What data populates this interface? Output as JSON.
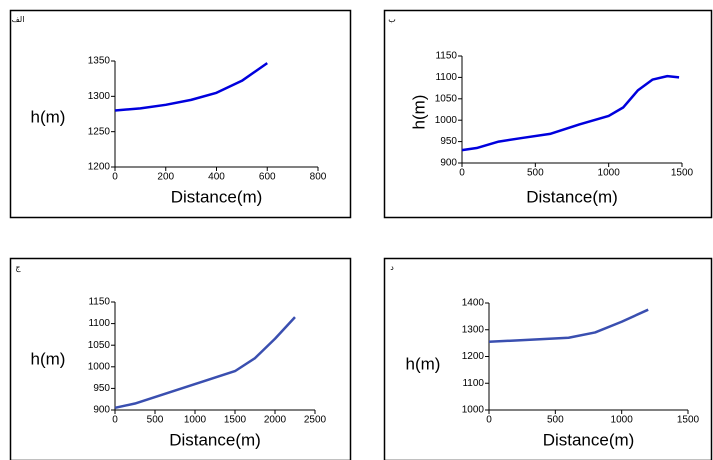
{
  "chart_data": [
    {
      "type": "line",
      "panel_label": "الف",
      "x_label": "Distance(m)",
      "y_label": "h(m)",
      "x": [
        0,
        100,
        200,
        300,
        400,
        500,
        600
      ],
      "series": [
        {
          "color": "#0000dd",
          "values": [
            1280,
            1283,
            1288,
            1295,
            1305,
            1322,
            1347
          ]
        }
      ],
      "xlim": [
        0,
        800
      ],
      "xticks": [
        0,
        200,
        400,
        600,
        800
      ],
      "ylim": [
        1200,
        1350
      ],
      "yticks": [
        1200,
        1250,
        1300,
        1350
      ]
    },
    {
      "type": "line",
      "panel_label": "ب",
      "x_label": "Distance(m)",
      "y_label": "h(m)",
      "x": [
        0,
        100,
        250,
        400,
        600,
        800,
        1000,
        1100,
        1200,
        1300,
        1400,
        1480
      ],
      "series": [
        {
          "color": "#0000dd",
          "values": [
            930,
            935,
            950,
            958,
            968,
            990,
            1010,
            1030,
            1070,
            1095,
            1103,
            1100
          ]
        }
      ],
      "xlim": [
        0,
        1500
      ],
      "xticks": [
        0,
        500,
        1000,
        1500
      ],
      "ylim": [
        900,
        1150
      ],
      "yticks": [
        900,
        950,
        1000,
        1050,
        1100,
        1150
      ]
    },
    {
      "type": "line",
      "panel_label": "ج",
      "x_label": "Distance(m)",
      "y_label": "h(m)",
      "x": [
        0,
        250,
        500,
        750,
        1000,
        1250,
        1500,
        1750,
        2000,
        2250
      ],
      "series": [
        {
          "color": "#3a4fb0",
          "values": [
            905,
            915,
            930,
            945,
            960,
            975,
            990,
            1020,
            1065,
            1115
          ]
        }
      ],
      "xlim": [
        0,
        2500
      ],
      "xticks": [
        0,
        500,
        1000,
        1500,
        2000,
        2500
      ],
      "ylim": [
        900,
        1150
      ],
      "yticks": [
        900,
        950,
        1000,
        1050,
        1100,
        1150
      ]
    },
    {
      "type": "line",
      "panel_label": "د",
      "x_label": "Distance(m)",
      "y_label": "h(m)",
      "x": [
        0,
        200,
        400,
        600,
        800,
        1000,
        1200
      ],
      "series": [
        {
          "color": "#3a4fb0",
          "values": [
            1255,
            1260,
            1265,
            1270,
            1290,
            1330,
            1375
          ]
        }
      ],
      "xlim": [
        0,
        1500
      ],
      "xticks": [
        0,
        500,
        1000,
        1500
      ],
      "ylim": [
        1000,
        1400
      ],
      "yticks": [
        1000,
        1100,
        1200,
        1300,
        1400
      ]
    }
  ]
}
